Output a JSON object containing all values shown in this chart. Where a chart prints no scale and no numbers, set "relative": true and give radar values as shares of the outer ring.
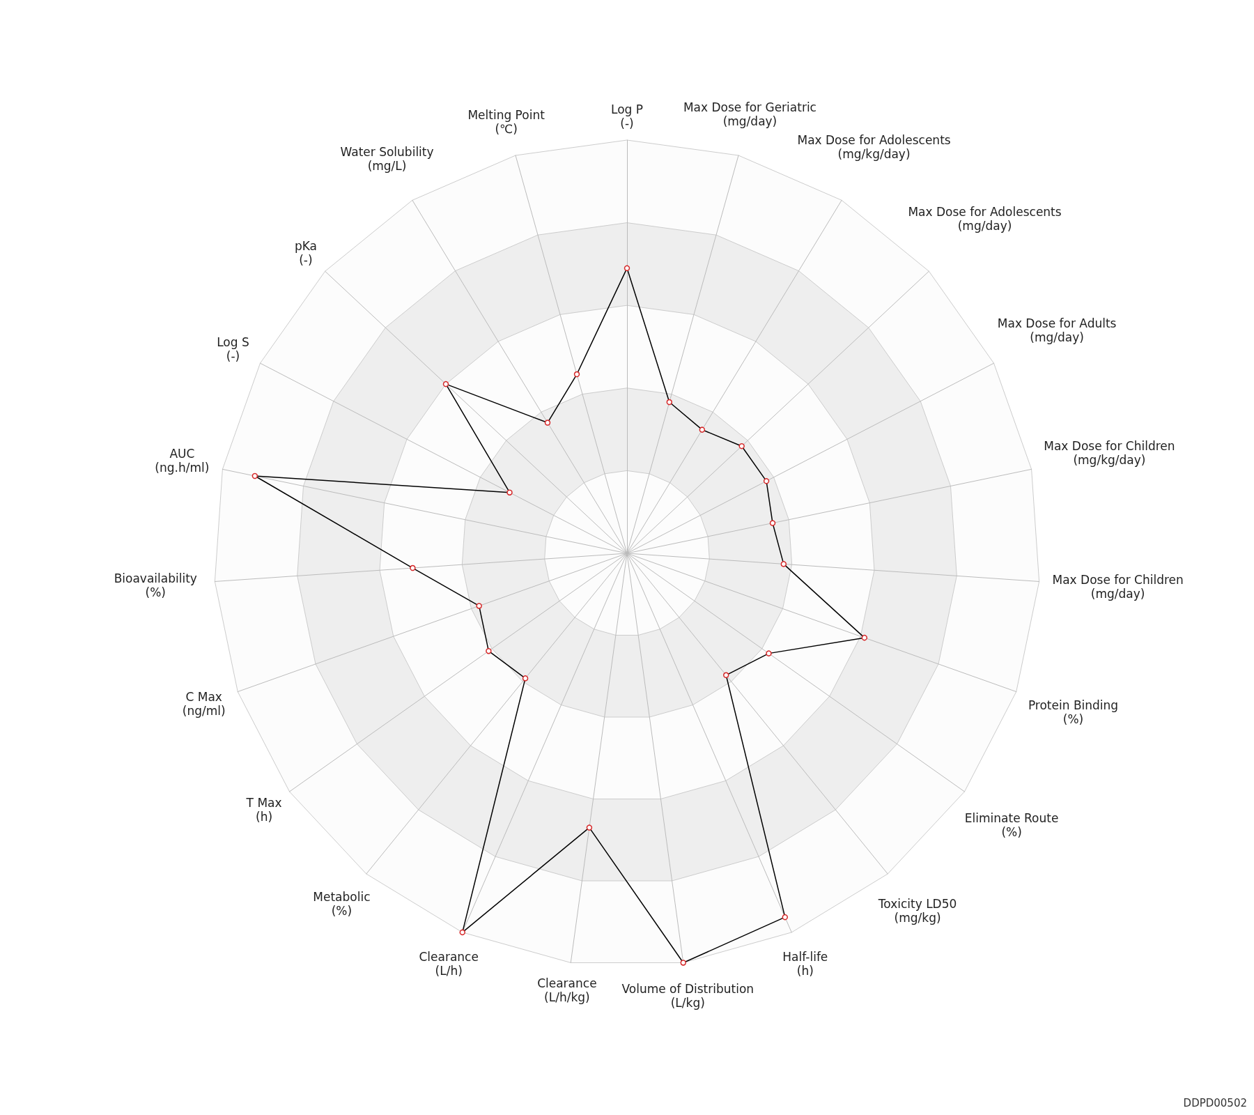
{
  "chart_data": {
    "type": "radar",
    "relative": true,
    "marker": "circle",
    "line_style": "solid",
    "categories": [
      "Log P\n(-)",
      "Max Dose for Geriatric\n(mg/day)",
      "Max Dose for Adolescents\n(mg/kg/day)",
      "Max Dose for Adolescents\n(mg/day)",
      "Max Dose for Adults\n(mg/day)",
      "Max Dose for Children\n(mg/kg/day)",
      "Max Dose for Children\n(mg/day)",
      "Protein Binding\n(%)",
      "Eliminate Route\n(%)",
      "Toxicity LD50\n(mg/kg)",
      "Half-life\n(h)",
      "Volume of Distribution\n(L/kg)",
      "Clearance\n(L/h/kg)",
      "Clearance\n(L/h)",
      "Metabolic\n(%)",
      "T Max\n(h)",
      "C Max\n(ng/ml)",
      "Bioavailability\n(%)",
      "AUC\n(ng.h/ml)",
      "Log S\n(-)",
      "pKa\n(-)",
      "Water Solubility\n(mg/L)",
      "Melting Point\n(℃)"
    ],
    "series": [
      {
        "color": "#000000",
        "values": [
          0.69,
          0.38,
          0.35,
          0.38,
          0.38,
          0.36,
          0.38,
          0.61,
          0.42,
          0.38,
          0.96,
          1.0,
          0.67,
          1.0,
          0.39,
          0.41,
          0.38,
          0.52,
          0.92,
          0.32,
          0.6,
          0.37,
          0.45
        ]
      }
    ],
    "annotations": [
      "DDPD00502"
    ]
  }
}
